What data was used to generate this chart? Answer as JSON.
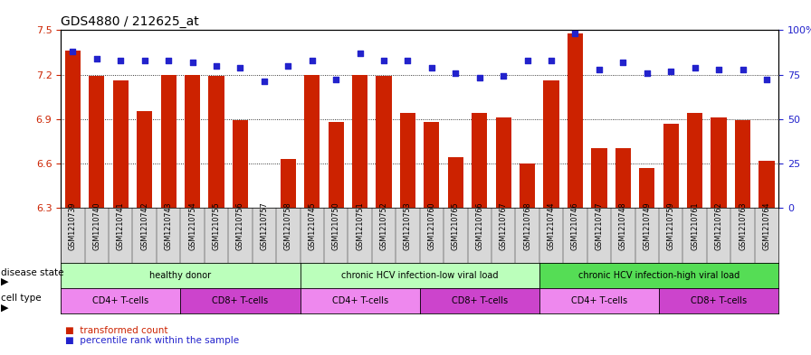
{
  "title": "GDS4880 / 212625_at",
  "samples": [
    "GSM1210739",
    "GSM1210740",
    "GSM1210741",
    "GSM1210742",
    "GSM1210743",
    "GSM1210754",
    "GSM1210755",
    "GSM1210756",
    "GSM1210757",
    "GSM1210758",
    "GSM1210745",
    "GSM1210750",
    "GSM1210751",
    "GSM1210752",
    "GSM1210753",
    "GSM1210760",
    "GSM1210765",
    "GSM1210766",
    "GSM1210767",
    "GSM1210768",
    "GSM1210744",
    "GSM1210746",
    "GSM1210747",
    "GSM1210748",
    "GSM1210749",
    "GSM1210759",
    "GSM1210761",
    "GSM1210762",
    "GSM1210763",
    "GSM1210764"
  ],
  "bar_values": [
    7.36,
    7.19,
    7.16,
    6.95,
    7.2,
    7.2,
    7.19,
    6.89,
    6.3,
    6.63,
    7.2,
    6.88,
    7.2,
    7.19,
    6.94,
    6.88,
    6.64,
    6.94,
    6.91,
    6.6,
    7.16,
    7.48,
    6.7,
    6.7,
    6.57,
    6.87,
    6.94,
    6.91,
    6.89,
    6.62
  ],
  "percentile_values": [
    88,
    84,
    83,
    83,
    83,
    82,
    80,
    79,
    71,
    80,
    83,
    72,
    87,
    83,
    83,
    79,
    76,
    73,
    74,
    83,
    83,
    98,
    78,
    82,
    76,
    77,
    79,
    78,
    78,
    72
  ],
  "ylim_left": [
    6.3,
    7.5
  ],
  "ylim_right": [
    0,
    100
  ],
  "bar_color": "#cc2200",
  "percentile_color": "#2222cc",
  "bg_color": "#ffffff",
  "disease_groups": [
    {
      "label": "healthy donor",
      "start": 0,
      "end": 9,
      "color": "#bbffbb"
    },
    {
      "label": "chronic HCV infection-low viral load",
      "start": 10,
      "end": 19,
      "color": "#bbffbb"
    },
    {
      "label": "chronic HCV infection-high viral load",
      "start": 20,
      "end": 29,
      "color": "#55dd55"
    }
  ],
  "cell_type_groups": [
    {
      "label": "CD4+ T-cells",
      "start": 0,
      "end": 4,
      "color": "#ee88ee"
    },
    {
      "label": "CD8+ T-cells",
      "start": 5,
      "end": 9,
      "color": "#cc44cc"
    },
    {
      "label": "CD4+ T-cells",
      "start": 10,
      "end": 14,
      "color": "#ee88ee"
    },
    {
      "label": "CD8+ T-cells",
      "start": 15,
      "end": 19,
      "color": "#cc44cc"
    },
    {
      "label": "CD4+ T-cells",
      "start": 20,
      "end": 24,
      "color": "#ee88ee"
    },
    {
      "label": "CD8+ T-cells",
      "start": 25,
      "end": 29,
      "color": "#cc44cc"
    }
  ],
  "left_yticks": [
    6.3,
    6.6,
    6.9,
    7.2,
    7.5
  ],
  "right_yticks": [
    0,
    25,
    50,
    75,
    100
  ],
  "right_yticklabels": [
    "0",
    "25",
    "50",
    "75",
    "100%"
  ],
  "disease_state_label": "disease state",
  "cell_type_label": "cell type",
  "legend_transformed": "transformed count",
  "legend_percentile": "percentile rank within the sample"
}
